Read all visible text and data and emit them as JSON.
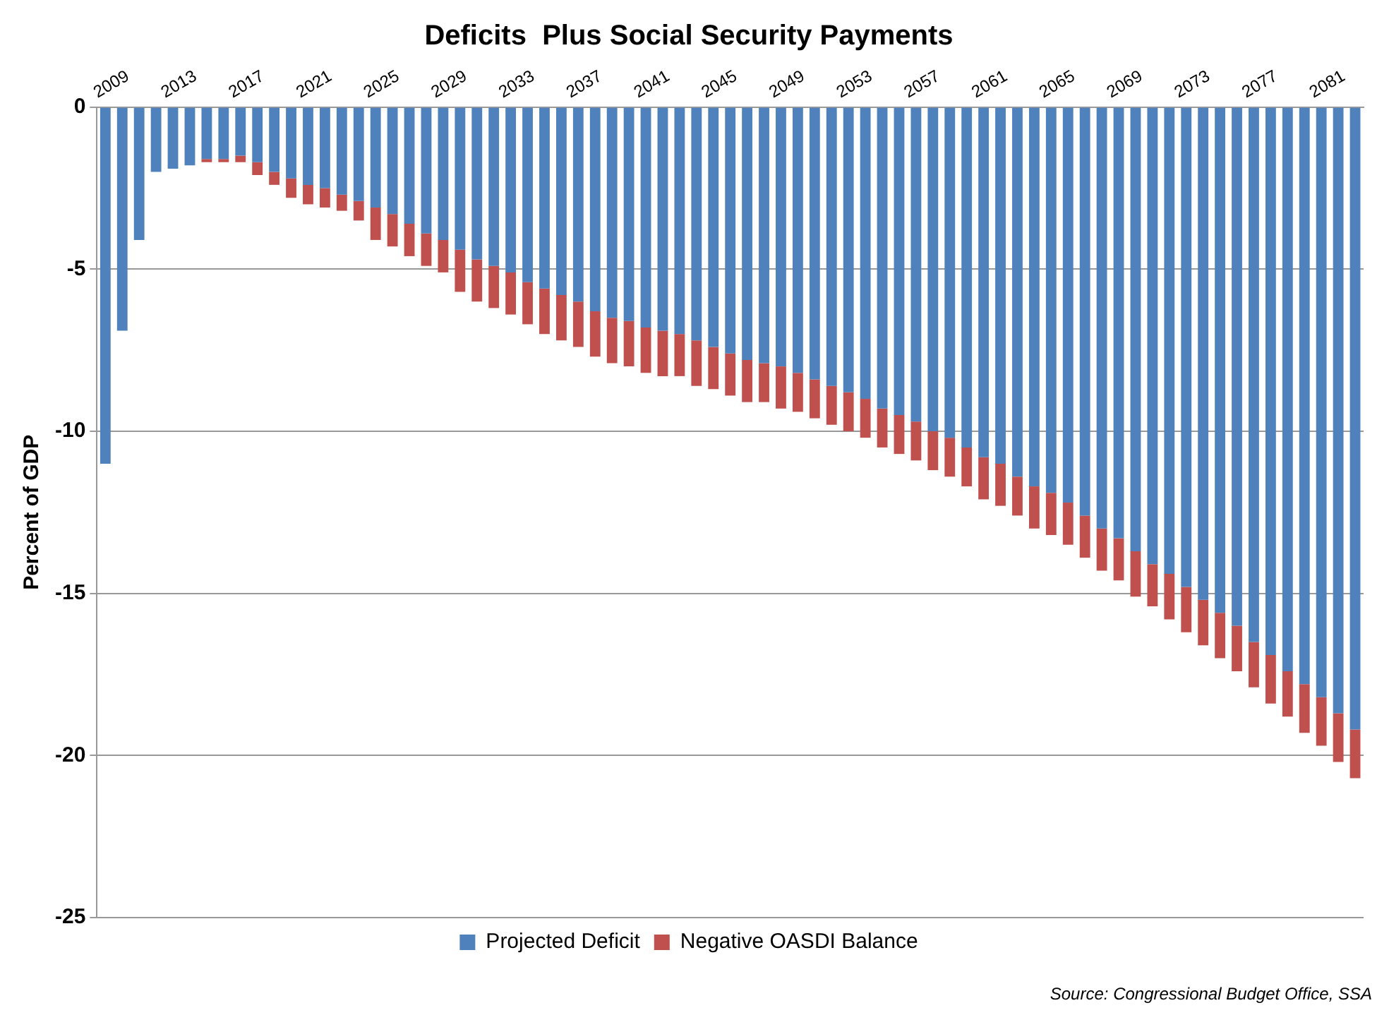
{
  "chart_data": {
    "type": "bar",
    "title": "Deficits  Plus Social Security Payments",
    "ylabel": "Percent of GDP",
    "stacked": true,
    "categories": [
      "2009",
      null,
      null,
      null,
      "2013",
      null,
      null,
      null,
      "2017",
      null,
      null,
      null,
      "2021",
      null,
      null,
      null,
      "2025",
      null,
      null,
      null,
      "2029",
      null,
      null,
      null,
      "2033",
      null,
      null,
      null,
      "2037",
      null,
      null,
      null,
      "2041",
      null,
      null,
      null,
      "2045",
      null,
      null,
      null,
      "2049",
      null,
      null,
      null,
      "2053",
      null,
      null,
      null,
      "2057",
      null,
      null,
      null,
      "2061",
      null,
      null,
      null,
      "2065",
      null,
      null,
      null,
      "2069",
      null,
      null,
      null,
      "2073",
      null,
      null,
      null,
      "2077",
      null,
      null,
      null,
      "2081",
      null,
      null
    ],
    "series": [
      {
        "name": "Projected Deficit",
        "color": "#4f81bd",
        "values": [
          -11.0,
          -6.9,
          -4.1,
          -2.0,
          -1.9,
          -1.8,
          -1.6,
          -1.6,
          -1.5,
          -1.7,
          -2.0,
          -2.2,
          -2.4,
          -2.5,
          -2.7,
          -2.9,
          -3.1,
          -3.3,
          -3.6,
          -3.9,
          -4.1,
          -4.4,
          -4.7,
          -4.9,
          -5.1,
          -5.4,
          -5.6,
          -5.8,
          -6.0,
          -6.3,
          -6.5,
          -6.6,
          -6.8,
          -6.9,
          -7.0,
          -7.2,
          -7.4,
          -7.6,
          -7.8,
          -7.9,
          -8.0,
          -8.2,
          -8.4,
          -8.6,
          -8.8,
          -9.0,
          -9.3,
          -9.5,
          -9.7,
          -10.0,
          -10.2,
          -10.5,
          -10.8,
          -11.0,
          -11.4,
          -11.7,
          -11.9,
          -12.2,
          -12.6,
          -13.0,
          -13.3,
          -13.7,
          -14.1,
          -14.4,
          -14.8,
          -15.2,
          -15.6,
          -16.0,
          -16.5,
          -16.9,
          -17.4,
          -17.8,
          -18.2,
          -18.7,
          -19.2
        ]
      },
      {
        "name": "Negative OASDI Balance",
        "color": "#c0504d",
        "values": [
          null,
          null,
          null,
          null,
          null,
          null,
          -0.1,
          -0.1,
          -0.2,
          -0.4,
          -0.4,
          -0.6,
          -0.6,
          -0.6,
          -0.5,
          -0.6,
          -1.0,
          -1.0,
          -1.0,
          -1.0,
          -1.0,
          -1.3,
          -1.3,
          -1.3,
          -1.3,
          -1.3,
          -1.4,
          -1.4,
          -1.4,
          -1.4,
          -1.4,
          -1.4,
          -1.4,
          -1.4,
          -1.3,
          -1.4,
          -1.3,
          -1.3,
          -1.3,
          -1.2,
          -1.3,
          -1.2,
          -1.2,
          -1.2,
          -1.2,
          -1.2,
          -1.2,
          -1.2,
          -1.2,
          -1.2,
          -1.2,
          -1.2,
          -1.3,
          -1.3,
          -1.2,
          -1.3,
          -1.3,
          -1.3,
          -1.3,
          -1.3,
          -1.3,
          -1.4,
          -1.3,
          -1.4,
          -1.4,
          -1.4,
          -1.4,
          -1.4,
          -1.4,
          -1.5,
          -1.4,
          -1.5,
          -1.5,
          -1.5,
          -1.5
        ]
      }
    ],
    "ylim": [
      -25,
      0
    ],
    "yticks": [
      -25,
      -20,
      -15,
      -10,
      -5,
      0
    ],
    "grid": "y",
    "legend": "bottom",
    "annotations": [
      "Source: Congressional  Budget Office, SSA"
    ]
  }
}
